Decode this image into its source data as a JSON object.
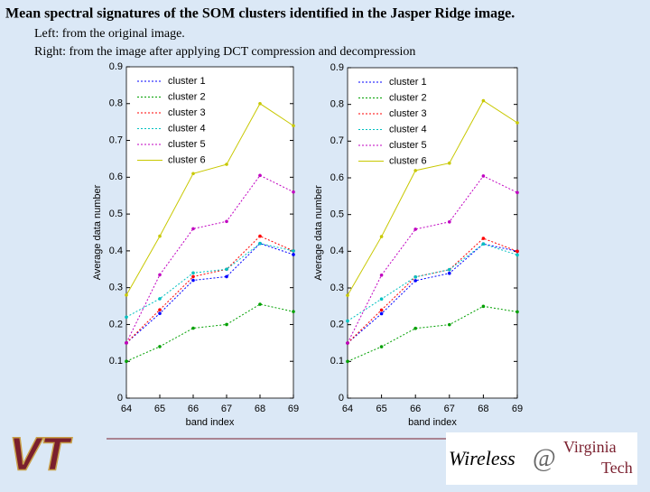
{
  "slide": {
    "title": "Mean spectral signatures of the SOM clusters identified in the Jasper Ridge image.",
    "lines": [
      "Left: from the original image.",
      "Right: from the image after applying DCT compression and decompression"
    ],
    "footer": {
      "logo": "VT",
      "brand": [
        "Wireless",
        "@",
        "Virginia",
        "Tech"
      ]
    }
  },
  "chart_data": [
    {
      "type": "line",
      "xlabel": "band index",
      "ylabel": "Average data number",
      "x": [
        64,
        65,
        66,
        67,
        68,
        69
      ],
      "xlim": [
        64,
        69
      ],
      "xticks": [
        64,
        65,
        66,
        67,
        68,
        69
      ],
      "ylim": [
        0,
        0.9
      ],
      "yticks": [
        0,
        0.1,
        0.2,
        0.3,
        0.4,
        0.5,
        0.6,
        0.7,
        0.8,
        0.9
      ],
      "legend": "upper left",
      "series": [
        {
          "name": "cluster 1",
          "color": "#0000ff",
          "values": [
            0.15,
            0.23,
            0.32,
            0.33,
            0.42,
            0.39
          ]
        },
        {
          "name": "cluster 2",
          "color": "#00a000",
          "values": [
            0.1,
            0.14,
            0.19,
            0.2,
            0.255,
            0.235
          ]
        },
        {
          "name": "cluster 3",
          "color": "#ff0000",
          "values": [
            0.15,
            0.24,
            0.33,
            0.35,
            0.44,
            0.4
          ]
        },
        {
          "name": "cluster 4",
          "color": "#00c0c0",
          "values": [
            0.22,
            0.27,
            0.34,
            0.35,
            0.42,
            0.4
          ]
        },
        {
          "name": "cluster 5",
          "color": "#c000c0",
          "values": [
            0.15,
            0.335,
            0.46,
            0.48,
            0.605,
            0.56
          ]
        },
        {
          "name": "cluster 6",
          "color": "#c8c800",
          "values": [
            0.28,
            0.44,
            0.61,
            0.635,
            0.8,
            0.74
          ]
        }
      ]
    },
    {
      "type": "line",
      "xlabel": "band index",
      "ylabel": "Average data number",
      "x": [
        64,
        65,
        66,
        67,
        68,
        69
      ],
      "xlim": [
        64,
        69
      ],
      "xticks": [
        64,
        65,
        66,
        67,
        68,
        69
      ],
      "ylim": [
        0,
        0.9
      ],
      "yticks": [
        0,
        0.1,
        0.2,
        0.3,
        0.4,
        0.5,
        0.6,
        0.7,
        0.8,
        0.9
      ],
      "legend": "upper left",
      "series": [
        {
          "name": "cluster 1",
          "color": "#0000ff",
          "values": [
            0.15,
            0.23,
            0.32,
            0.34,
            0.42,
            0.4
          ]
        },
        {
          "name": "cluster 2",
          "color": "#00a000",
          "values": [
            0.1,
            0.14,
            0.19,
            0.2,
            0.25,
            0.235
          ]
        },
        {
          "name": "cluster 3",
          "color": "#ff0000",
          "values": [
            0.15,
            0.24,
            0.33,
            0.35,
            0.435,
            0.4
          ]
        },
        {
          "name": "cluster 4",
          "color": "#00c0c0",
          "values": [
            0.21,
            0.27,
            0.33,
            0.35,
            0.42,
            0.39
          ]
        },
        {
          "name": "cluster 5",
          "color": "#c000c0",
          "values": [
            0.15,
            0.335,
            0.46,
            0.48,
            0.605,
            0.56
          ]
        },
        {
          "name": "cluster 6",
          "color": "#c8c800",
          "values": [
            0.28,
            0.44,
            0.62,
            0.64,
            0.81,
            0.75
          ]
        }
      ]
    }
  ]
}
